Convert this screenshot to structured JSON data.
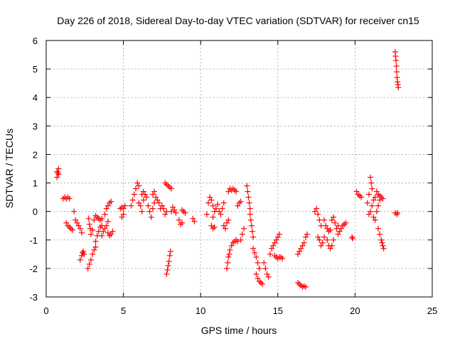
{
  "chart_data": {
    "type": "scatter",
    "title": "Day 226 of 2018, Sidereal Day-to-day VTEC variation (SDTVAR) for receiver cn15",
    "xlabel": "GPS time / hours",
    "ylabel": "SDTVAR / TECUs",
    "xlim": [
      0,
      25
    ],
    "ylim": [
      -3,
      6
    ],
    "xticks": [
      "0",
      "5",
      "10",
      "15",
      "20",
      "25"
    ],
    "yticks": [
      "-3",
      "-2",
      "-1",
      "0",
      "1",
      "2",
      "3",
      "4",
      "5",
      "6"
    ],
    "grid": true,
    "marker": "+",
    "color": "#ff0000",
    "series": [
      {
        "values": [
          [
            0.7,
            1.2
          ],
          [
            0.7,
            1.4
          ],
          [
            0.75,
            1.35
          ],
          [
            0.8,
            1.5
          ],
          [
            0.8,
            1.3
          ],
          [
            1.1,
            0.45
          ],
          [
            1.2,
            0.5
          ],
          [
            1.3,
            0.45
          ],
          [
            1.4,
            0.5
          ],
          [
            1.5,
            0.45
          ],
          [
            1.3,
            -0.4
          ],
          [
            1.4,
            -0.5
          ],
          [
            1.5,
            -0.55
          ],
          [
            1.6,
            -0.6
          ],
          [
            1.7,
            -0.65
          ],
          [
            1.8,
            0.0
          ],
          [
            1.9,
            -0.3
          ],
          [
            2.0,
            -0.4
          ],
          [
            2.1,
            -0.5
          ],
          [
            2.2,
            -0.6
          ],
          [
            2.3,
            -0.75
          ],
          [
            2.2,
            -1.7
          ],
          [
            2.3,
            -1.55
          ],
          [
            2.35,
            -1.45
          ],
          [
            2.4,
            -1.4
          ],
          [
            2.45,
            -1.5
          ],
          [
            2.7,
            -2.0
          ],
          [
            2.8,
            -1.85
          ],
          [
            2.9,
            -1.7
          ],
          [
            3.0,
            -1.5
          ],
          [
            3.1,
            -1.35
          ],
          [
            3.2,
            -1.25
          ],
          [
            2.75,
            -0.25
          ],
          [
            2.8,
            -0.45
          ],
          [
            2.85,
            -0.6
          ],
          [
            2.9,
            -0.8
          ],
          [
            3.0,
            -0.65
          ],
          [
            3.1,
            -0.3
          ],
          [
            3.2,
            -0.15
          ],
          [
            3.3,
            -0.2
          ],
          [
            3.4,
            -0.25
          ],
          [
            3.5,
            -0.3
          ],
          [
            3.6,
            -0.25
          ],
          [
            3.2,
            -1.05
          ],
          [
            3.3,
            -0.85
          ],
          [
            3.4,
            -0.7
          ],
          [
            3.5,
            -0.55
          ],
          [
            3.6,
            -0.5
          ],
          [
            3.6,
            -0.85
          ],
          [
            3.7,
            -0.7
          ],
          [
            3.8,
            -0.6
          ],
          [
            3.9,
            -0.5
          ],
          [
            4.0,
            -0.35
          ],
          [
            3.8,
            -0.1
          ],
          [
            3.9,
            0.1
          ],
          [
            4.0,
            0.2
          ],
          [
            4.1,
            0.3
          ],
          [
            4.2,
            0.35
          ],
          [
            4.0,
            -0.75
          ],
          [
            4.1,
            -0.85
          ],
          [
            4.2,
            -0.8
          ],
          [
            4.3,
            -0.7
          ],
          [
            4.8,
            0.1
          ],
          [
            4.9,
            0.15
          ],
          [
            5.0,
            0.1
          ],
          [
            5.1,
            0.2
          ],
          [
            4.9,
            -0.2
          ],
          [
            5.0,
            -0.1
          ],
          [
            5.5,
            0.2
          ],
          [
            5.6,
            0.4
          ],
          [
            5.7,
            0.6
          ],
          [
            5.8,
            0.8
          ],
          [
            5.9,
            1.0
          ],
          [
            6.0,
            0.9
          ],
          [
            6.0,
            0.3
          ],
          [
            6.1,
            0.2
          ],
          [
            6.2,
            0.0
          ],
          [
            6.3,
            0.4
          ],
          [
            6.4,
            0.6
          ],
          [
            6.2,
            0.6
          ],
          [
            6.3,
            0.7
          ],
          [
            6.5,
            0.5
          ],
          [
            6.6,
            0.2
          ],
          [
            6.7,
            0.0
          ],
          [
            6.8,
            -0.2
          ],
          [
            6.9,
            0.1
          ],
          [
            7.0,
            0.3
          ],
          [
            7.1,
            0.5
          ],
          [
            7.2,
            0.4
          ],
          [
            6.9,
            0.6
          ],
          [
            7.0,
            0.7
          ],
          [
            7.3,
            0.3
          ],
          [
            7.4,
            0.1
          ],
          [
            7.5,
            0.2
          ],
          [
            7.6,
            0.1
          ],
          [
            7.7,
            -0.1
          ],
          [
            7.8,
            0.0
          ],
          [
            7.7,
            1.0
          ],
          [
            7.8,
            0.95
          ],
          [
            7.9,
            0.9
          ],
          [
            8.0,
            0.85
          ],
          [
            8.1,
            0.8
          ],
          [
            7.8,
            -2.2
          ],
          [
            7.85,
            -2.05
          ],
          [
            7.9,
            -1.9
          ],
          [
            7.95,
            -1.75
          ],
          [
            8.0,
            -1.55
          ],
          [
            8.05,
            -1.4
          ],
          [
            8.1,
            0.0
          ],
          [
            8.2,
            0.15
          ],
          [
            8.3,
            0.05
          ],
          [
            8.4,
            -0.05
          ],
          [
            8.6,
            -0.3
          ],
          [
            8.7,
            -0.45
          ],
          [
            8.8,
            -0.4
          ],
          [
            8.8,
            0.05
          ],
          [
            8.9,
            0.0
          ],
          [
            9.0,
            -0.05
          ],
          [
            9.5,
            -0.25
          ],
          [
            9.6,
            -0.35
          ],
          [
            10.4,
            -0.1
          ],
          [
            10.5,
            0.3
          ],
          [
            10.6,
            0.5
          ],
          [
            10.7,
            0.4
          ],
          [
            10.8,
            0.2
          ],
          [
            10.8,
            -0.2
          ],
          [
            10.9,
            0.0
          ],
          [
            11.0,
            0.1
          ],
          [
            11.1,
            0.25
          ],
          [
            10.7,
            -0.5
          ],
          [
            10.8,
            -0.6
          ],
          [
            10.9,
            -0.55
          ],
          [
            11.2,
            0.0
          ],
          [
            11.3,
            -0.1
          ],
          [
            11.4,
            0.1
          ],
          [
            11.5,
            0.3
          ],
          [
            11.5,
            -0.5
          ],
          [
            11.6,
            -0.6
          ],
          [
            11.7,
            -0.4
          ],
          [
            11.8,
            -0.3
          ],
          [
            11.7,
            -2.0
          ],
          [
            11.75,
            -1.8
          ],
          [
            11.8,
            -1.6
          ],
          [
            11.85,
            -1.5
          ],
          [
            11.9,
            -1.35
          ],
          [
            11.8,
            0.7
          ],
          [
            11.9,
            0.8
          ],
          [
            12.0,
            0.75
          ],
          [
            12.1,
            0.8
          ],
          [
            12.2,
            0.75
          ],
          [
            12.3,
            0.7
          ],
          [
            12.0,
            -1.2
          ],
          [
            12.1,
            -1.1
          ],
          [
            12.2,
            -1.05
          ],
          [
            12.3,
            -1.0
          ],
          [
            12.4,
            -1.05
          ],
          [
            12.4,
            0.2
          ],
          [
            12.5,
            0.3
          ],
          [
            12.6,
            0.35
          ],
          [
            12.6,
            -1.0
          ],
          [
            12.7,
            -0.8
          ],
          [
            12.8,
            -0.6
          ],
          [
            13.0,
            0.9
          ],
          [
            13.05,
            0.7
          ],
          [
            13.1,
            0.5
          ],
          [
            13.15,
            0.3
          ],
          [
            13.2,
            0.1
          ],
          [
            13.2,
            -0.1
          ],
          [
            13.25,
            -0.3
          ],
          [
            13.3,
            -0.5
          ],
          [
            13.35,
            -0.7
          ],
          [
            13.4,
            -0.9
          ],
          [
            13.4,
            -1.3
          ],
          [
            13.5,
            -1.45
          ],
          [
            13.6,
            -1.6
          ],
          [
            13.7,
            -1.8
          ],
          [
            13.8,
            -2.0
          ],
          [
            13.6,
            -2.2
          ],
          [
            13.7,
            -2.35
          ],
          [
            13.8,
            -2.45
          ],
          [
            13.9,
            -2.5
          ],
          [
            14.0,
            -2.55
          ],
          [
            14.1,
            -1.8
          ],
          [
            14.2,
            -2.0
          ],
          [
            14.3,
            -2.2
          ],
          [
            14.4,
            -2.3
          ],
          [
            14.5,
            -1.5
          ],
          [
            14.6,
            -1.3
          ],
          [
            14.7,
            -1.2
          ],
          [
            14.8,
            -1.1
          ],
          [
            14.9,
            -1.0
          ],
          [
            15.0,
            -0.9
          ],
          [
            15.1,
            -0.8
          ],
          [
            14.8,
            -1.55
          ],
          [
            14.9,
            -1.6
          ],
          [
            15.0,
            -1.65
          ],
          [
            15.1,
            -1.6
          ],
          [
            15.2,
            -1.6
          ],
          [
            15.3,
            -1.65
          ],
          [
            16.3,
            -2.5
          ],
          [
            16.4,
            -2.55
          ],
          [
            16.5,
            -2.6
          ],
          [
            16.6,
            -2.65
          ],
          [
            16.7,
            -2.62
          ],
          [
            16.8,
            -2.65
          ],
          [
            16.3,
            -1.5
          ],
          [
            16.4,
            -1.4
          ],
          [
            16.5,
            -1.3
          ],
          [
            16.6,
            -1.2
          ],
          [
            16.7,
            -1.1
          ],
          [
            16.8,
            -0.9
          ],
          [
            16.9,
            -0.8
          ],
          [
            17.4,
            0.0
          ],
          [
            17.5,
            0.1
          ],
          [
            17.6,
            -0.1
          ],
          [
            17.7,
            -0.3
          ],
          [
            17.8,
            -0.5
          ],
          [
            17.6,
            -0.9
          ],
          [
            17.7,
            -1.0
          ],
          [
            17.8,
            -1.2
          ],
          [
            17.9,
            -1.1
          ],
          [
            18.0,
            -0.9
          ],
          [
            18.0,
            -0.3
          ],
          [
            18.1,
            -0.5
          ],
          [
            18.2,
            -0.6
          ],
          [
            18.3,
            -0.7
          ],
          [
            18.4,
            -0.65
          ],
          [
            18.2,
            -1.0
          ],
          [
            18.3,
            -1.2
          ],
          [
            18.4,
            -1.3
          ],
          [
            18.5,
            -1.2
          ],
          [
            18.6,
            -1.0
          ],
          [
            18.5,
            -0.3
          ],
          [
            18.6,
            -0.2
          ],
          [
            18.7,
            -0.4
          ],
          [
            18.8,
            -0.6
          ],
          [
            18.9,
            -0.5
          ],
          [
            18.9,
            -0.8
          ],
          [
            19.0,
            -0.7
          ],
          [
            19.1,
            -0.6
          ],
          [
            19.2,
            -0.5
          ],
          [
            19.3,
            -0.45
          ],
          [
            19.4,
            -0.4
          ],
          [
            19.8,
            -0.9
          ],
          [
            19.85,
            -0.95
          ],
          [
            20.1,
            0.7
          ],
          [
            20.2,
            0.6
          ],
          [
            20.3,
            0.55
          ],
          [
            20.4,
            0.5
          ],
          [
            20.8,
            0.3
          ],
          [
            20.9,
            0.6
          ],
          [
            21.0,
            1.2
          ],
          [
            21.05,
            1.0
          ],
          [
            21.1,
            0.8
          ],
          [
            20.9,
            -0.1
          ],
          [
            21.0,
            0.0
          ],
          [
            21.1,
            0.2
          ],
          [
            21.2,
            0.4
          ],
          [
            21.3,
            0.5
          ],
          [
            21.2,
            -0.2
          ],
          [
            21.3,
            -0.3
          ],
          [
            21.4,
            0.0
          ],
          [
            21.5,
            0.2
          ],
          [
            21.6,
            0.4
          ],
          [
            21.4,
            0.7
          ],
          [
            21.5,
            0.6
          ],
          [
            21.6,
            0.55
          ],
          [
            21.7,
            0.5
          ],
          [
            21.8,
            0.45
          ],
          [
            21.5,
            -0.6
          ],
          [
            21.6,
            -0.8
          ],
          [
            21.7,
            -1.0
          ],
          [
            21.75,
            -1.1
          ],
          [
            21.8,
            -1.2
          ],
          [
            21.85,
            -1.3
          ],
          [
            22.6,
            -0.05
          ],
          [
            22.7,
            -0.1
          ],
          [
            22.75,
            -0.05
          ],
          [
            22.6,
            5.6
          ],
          [
            22.62,
            5.45
          ],
          [
            22.65,
            5.3
          ],
          [
            22.68,
            5.1
          ],
          [
            22.7,
            4.9
          ],
          [
            22.72,
            4.7
          ],
          [
            22.75,
            4.55
          ],
          [
            22.78,
            4.45
          ],
          [
            22.8,
            4.35
          ]
        ]
      }
    ]
  }
}
